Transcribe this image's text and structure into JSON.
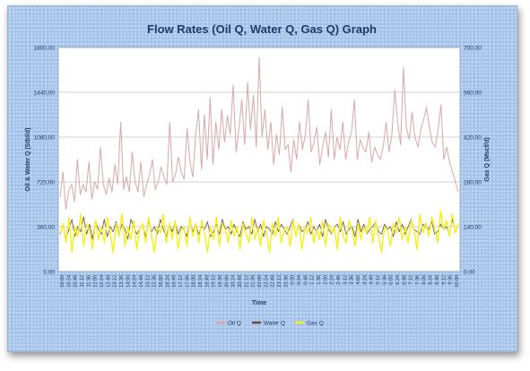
{
  "chart_data": {
    "type": "line",
    "title": "Flow Rates (Oil Q, Water Q, Gas Q) Graph",
    "xlabel": "Time",
    "ylabel_left": "Oil & Water Q (Stbl/d)",
    "ylabel_right": "Gas Q (Mscf/d)",
    "ylim_left": [
      0,
      1800
    ],
    "ylim_right": [
      0,
      700
    ],
    "yticks_left": [
      "0.00",
      "360.00",
      "720.00",
      "1080.00",
      "1440.00",
      "1800.00"
    ],
    "yticks_right": [
      "0.00",
      "140.00",
      "280.00",
      "420.00",
      "560.00",
      "700.00"
    ],
    "grid": true,
    "legend_position": "bottom",
    "x_ticks": [
      "10:00",
      "10:24",
      "10:48",
      "11:12",
      "11:36",
      "12:00",
      "12:24",
      "12:48",
      "13:12",
      "13:36",
      "14:00",
      "14:24",
      "14:48",
      "15:12",
      "15:36",
      "16:00",
      "16:24",
      "16:48",
      "17:12",
      "17:36",
      "18:00",
      "18:24",
      "18:48",
      "19:12",
      "19:36",
      "20:00",
      "20:24",
      "20:48",
      "21:12",
      "21:36",
      "22:00",
      "22:24",
      "22:48",
      "23:12",
      "23:36",
      "0:00",
      "0:24",
      "0:48",
      "1:12",
      "1:36",
      "2:00",
      "2:24",
      "2:48",
      "3:12",
      "3:36",
      "4:00",
      "4:24",
      "4:48",
      "5:12",
      "5:36",
      "6:00",
      "6:24",
      "6:48",
      "7:12",
      "7:36",
      "8:00",
      "8:24",
      "8:48",
      "9:12",
      "9:36",
      "10:00"
    ],
    "series": [
      {
        "name": "Oil Q",
        "axis": "left",
        "color": "#d9a7a7",
        "values": [
          600,
          800,
          500,
          650,
          700,
          560,
          900,
          620,
          700,
          640,
          880,
          580,
          720,
          660,
          1000,
          700,
          620,
          750,
          640,
          860,
          700,
          1200,
          660,
          760,
          640,
          960,
          720,
          640,
          880,
          600,
          700,
          780,
          900,
          660,
          720,
          840,
          760,
          700,
          1200,
          720,
          780,
          920,
          800,
          740,
          1150,
          880,
          760,
          1100,
          1300,
          820,
          1260,
          900,
          1400,
          860,
          1200,
          980,
          1300,
          1040,
          1250,
          1100,
          1500,
          960,
          1150,
          1380,
          1020,
          1520,
          1140,
          1420,
          1000,
          1720,
          1080,
          1300,
          980,
          1200,
          860,
          1100,
          940,
          1320,
          980,
          1020,
          800,
          1060,
          900,
          1200,
          980,
          1100,
          1380,
          960,
          1040,
          1160,
          860,
          1000,
          1120,
          920,
          1300,
          900,
          1080,
          980,
          1200,
          900,
          1040,
          1120,
          1380,
          900,
          1060,
          1000,
          960,
          1120,
          880,
          1000,
          940,
          900,
          1000,
          1200,
          960,
          1100,
          1460,
          1200,
          1020,
          1640,
          1160,
          1060,
          1280,
          1080,
          1000,
          1140,
          1220,
          1320,
          1160,
          1040,
          1000,
          1140,
          1340,
          900,
          1000,
          880,
          800,
          720,
          640
        ]
      },
      {
        "name": "Water Q",
        "axis": "left",
        "color": "#6b4a3e",
        "values": [
          300,
          380,
          260,
          340,
          420,
          280,
          360,
          320,
          440,
          300,
          380,
          260,
          400,
          340,
          300,
          420,
          280,
          360,
          320,
          400,
          300,
          380,
          340,
          260,
          420,
          360,
          300,
          340,
          380,
          280,
          400,
          320,
          360,
          300,
          420,
          340,
          280,
          380,
          320,
          400,
          300,
          360,
          340,
          280,
          420,
          320,
          380,
          300,
          360,
          340,
          400,
          280,
          320,
          380,
          300,
          420,
          340,
          360,
          300,
          380,
          320,
          280,
          400,
          340,
          360,
          300,
          420,
          320,
          380,
          280,
          360,
          340,
          300,
          400,
          320,
          380,
          340,
          300,
          360,
          420,
          280,
          380,
          320,
          340,
          400,
          300,
          360,
          320,
          380,
          280,
          420,
          340,
          300,
          360,
          380,
          320,
          400,
          300,
          340,
          360,
          280,
          420,
          320,
          380,
          300,
          340,
          360,
          400,
          320,
          300,
          380,
          340,
          360,
          280,
          400,
          320,
          380,
          300,
          360,
          420,
          340,
          320,
          300,
          380,
          360,
          340,
          400,
          300,
          320,
          380,
          340,
          360,
          300,
          420,
          320,
          380
        ]
      },
      {
        "name": "Gas Q",
        "axis": "right",
        "color": "#f5ef1c",
        "values": [
          120,
          150,
          90,
          170,
          60,
          140,
          110,
          180,
          80,
          150,
          130,
          70,
          160,
          100,
          140,
          90,
          170,
          120,
          60,
          150,
          110,
          180,
          80,
          140,
          100,
          160,
          70,
          130,
          150,
          90,
          170,
          110,
          60,
          140,
          120,
          180,
          90,
          150,
          100,
          160,
          70,
          130,
          140,
          80,
          170,
          110,
          150,
          90,
          160,
          120,
          60,
          140,
          100,
          170,
          80,
          150,
          130,
          90,
          160,
          110,
          140,
          70,
          150,
          120,
          90,
          170,
          100,
          140,
          80,
          160,
          120,
          60,
          150,
          110,
          170,
          90,
          130,
          140,
          80,
          160,
          110,
          150,
          70,
          140,
          120,
          170,
          90,
          130,
          100,
          160,
          80,
          150,
          120,
          140,
          70,
          170,
          110,
          90,
          160,
          130,
          80,
          150,
          100,
          140,
          120,
          170,
          90,
          160,
          110,
          60,
          140,
          130,
          80,
          150,
          120,
          170,
          100,
          140,
          90,
          160,
          130,
          70,
          180,
          120,
          150,
          110,
          170,
          140,
          90,
          190,
          130,
          160,
          110,
          180,
          120,
          150
        ]
      }
    ]
  }
}
